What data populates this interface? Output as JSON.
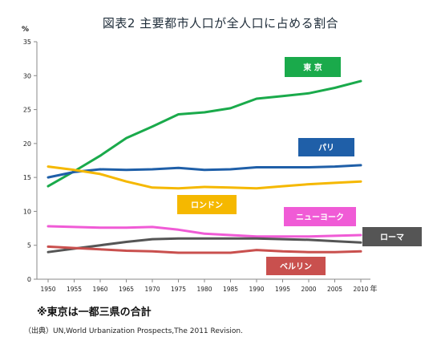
{
  "title": "図表2 主要都市人口が全人口に占める割合",
  "note": "※東京は一都三県の合計",
  "source": "（出典）UN,World Urbanization Prospects,The 2011 Revision.",
  "chart_data": {
    "type": "line",
    "ylabel": "%",
    "xlabel": "年",
    "x": [
      1950,
      1955,
      1960,
      1965,
      1970,
      1975,
      1980,
      1985,
      1990,
      1995,
      2000,
      2005,
      2010
    ],
    "ylim": [
      0,
      35
    ],
    "yticks": [
      0,
      5,
      10,
      15,
      20,
      25,
      30,
      35
    ],
    "grid": false,
    "series": [
      {
        "name": "東 京",
        "color": "#1aaa4b",
        "values": [
          13.7,
          15.9,
          18.2,
          20.8,
          22.5,
          24.3,
          24.6,
          25.2,
          26.6,
          27.0,
          27.4,
          28.2,
          29.2
        ]
      },
      {
        "name": "パリ",
        "color": "#1f5fa8",
        "values": [
          15.0,
          15.8,
          16.2,
          16.1,
          16.2,
          16.4,
          16.1,
          16.2,
          16.5,
          16.5,
          16.5,
          16.6,
          16.8
        ]
      },
      {
        "name": "ロンドン",
        "color": "#f5b800",
        "values": [
          16.6,
          16.1,
          15.5,
          14.4,
          13.5,
          13.4,
          13.6,
          13.5,
          13.4,
          13.7,
          14.0,
          14.2,
          14.4
        ]
      },
      {
        "name": "ニューヨーク",
        "color": "#f05bd6",
        "values": [
          7.8,
          7.7,
          7.6,
          7.6,
          7.7,
          7.3,
          6.7,
          6.5,
          6.3,
          6.3,
          6.3,
          6.4,
          6.5
        ]
      },
      {
        "name": "ローマ",
        "color": "#555555",
        "values": [
          4.0,
          4.5,
          5.0,
          5.5,
          5.9,
          6.0,
          6.0,
          6.0,
          6.0,
          5.9,
          5.8,
          5.6,
          5.4
        ]
      },
      {
        "name": "ベルリン",
        "color": "#c9504e",
        "values": [
          4.8,
          4.6,
          4.4,
          4.2,
          4.1,
          3.9,
          3.9,
          3.9,
          4.3,
          4.1,
          4.0,
          4.0,
          4.1
        ]
      }
    ]
  }
}
